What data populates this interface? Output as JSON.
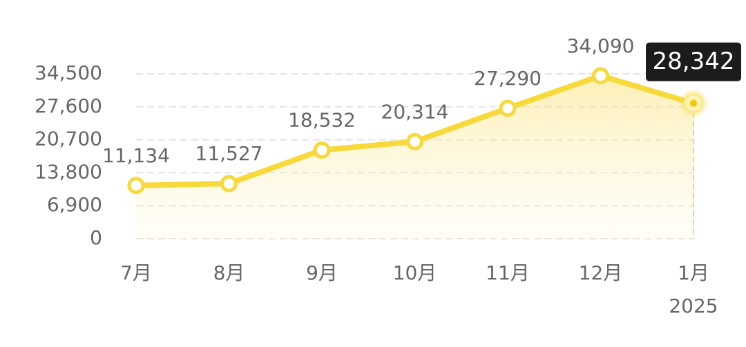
{
  "chart_data": {
    "type": "line",
    "categories": [
      "7月",
      "8月",
      "9月",
      "10月",
      "11月",
      "12月",
      "1月"
    ],
    "year_label": "2025",
    "values": [
      11134,
      11527,
      18532,
      20314,
      27290,
      34090,
      28342
    ],
    "value_labels": [
      "11,134",
      "11,527",
      "18,532",
      "20,314",
      "27,290",
      "34,090",
      "28,342"
    ],
    "color": "#f7d93b",
    "ylim": [
      0,
      34500
    ],
    "yticks": [
      0,
      {
        "value": 6900,
        "label": "6,900"
      },
      {
        "value": 13800,
        "label": "13,800"
      },
      {
        "value": 20700,
        "label": "20,700"
      },
      {
        "value": 27600,
        "label": "27,600"
      },
      {
        "value": 34500,
        "label": "34,500"
      }
    ],
    "grid": true
  }
}
